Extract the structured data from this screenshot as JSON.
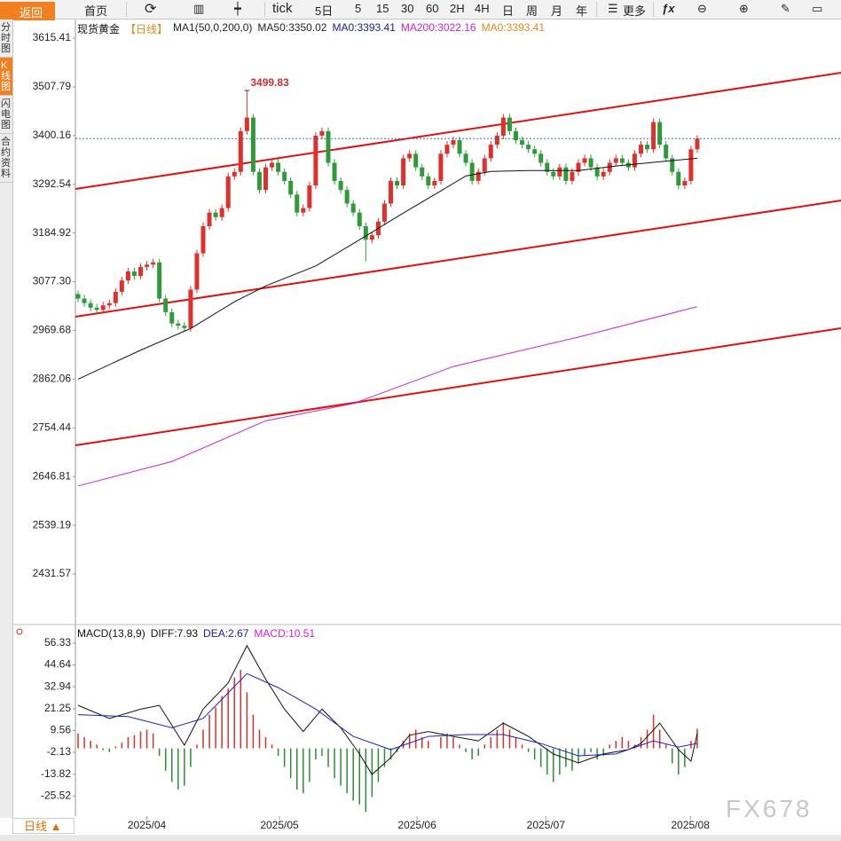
{
  "toolbar": {
    "back": "返回",
    "items": [
      "首页",
      "tick",
      "5日",
      "5",
      "15",
      "30",
      "60",
      "2H",
      "4H",
      "日",
      "周",
      "月",
      "年",
      "更多"
    ]
  },
  "sidebar": [
    "分时图",
    "K线图",
    "闪电图",
    "合约资料"
  ],
  "chart_data": [
    {
      "type": "candlestick",
      "title": "现货黄金",
      "period": "【日线】",
      "legend": [
        {
          "text": "MA1(50,0,200,0)",
          "color": "#222222"
        },
        {
          "text": "MA50:3350.02",
          "color": "#222222"
        },
        {
          "text": "MA0:3393.41",
          "color": "#1a1aa0"
        },
        {
          "text": "MA200:3022.16",
          "color": "#d020d0"
        },
        {
          "text": "MA0:3393.41",
          "color": "#e08a1e"
        }
      ],
      "up_color": "#e0302c",
      "down_color": "#2e9b3a",
      "open": [
        3050,
        3040,
        3030,
        3020,
        3015,
        3025,
        3030,
        3055,
        3080,
        3100,
        3090,
        3110,
        3115,
        3120,
        3040,
        3010,
        2985,
        2980,
        2975,
        3060,
        3140,
        3200,
        3230,
        3220,
        3240,
        3310,
        3320,
        3410,
        3440,
        3320,
        3280,
        3330,
        3340,
        3320,
        3300,
        3270,
        3230,
        3240,
        3290,
        3400,
        3410,
        3340,
        3300,
        3280,
        3250,
        3230,
        3200,
        3170,
        3180,
        3210,
        3250,
        3300,
        3290,
        3350,
        3360,
        3330,
        3310,
        3290,
        3300,
        3360,
        3380,
        3390,
        3360,
        3340,
        3300,
        3320,
        3350,
        3380,
        3400,
        3440,
        3410,
        3390,
        3380,
        3370,
        3360,
        3340,
        3320,
        3310,
        3330,
        3300,
        3320,
        3340,
        3350,
        3330,
        3310,
        3320,
        3340,
        3350,
        3340,
        3330,
        3360,
        3380,
        3370,
        3430,
        3380,
        3350,
        3320,
        3290,
        3300,
        3370
      ],
      "high": [
        3058,
        3048,
        3038,
        3028,
        3033,
        3038,
        3063,
        3088,
        3108,
        3108,
        3118,
        3123,
        3128,
        3128,
        3048,
        3018,
        2993,
        2988,
        3068,
        3148,
        3208,
        3238,
        3238,
        3248,
        3318,
        3328,
        3418,
        3499.83,
        3448,
        3328,
        3338,
        3348,
        3348,
        3328,
        3308,
        3278,
        3248,
        3298,
        3408,
        3418,
        3418,
        3348,
        3308,
        3288,
        3258,
        3238,
        3208,
        3188,
        3218,
        3258,
        3308,
        3308,
        3358,
        3368,
        3368,
        3338,
        3318,
        3308,
        3368,
        3388,
        3398,
        3398,
        3368,
        3348,
        3328,
        3358,
        3388,
        3408,
        3448,
        3448,
        3418,
        3398,
        3388,
        3378,
        3368,
        3348,
        3328,
        3338,
        3338,
        3328,
        3348,
        3358,
        3358,
        3338,
        3328,
        3348,
        3358,
        3358,
        3348,
        3368,
        3388,
        3388,
        3438,
        3438,
        3388,
        3358,
        3328,
        3308,
        3378,
        3401
      ],
      "low": [
        3032,
        3022,
        3012,
        3007,
        3007,
        3017,
        3022,
        3047,
        3072,
        3082,
        3082,
        3102,
        3107,
        3032,
        3002,
        2977,
        2972,
        2967,
        2967,
        3052,
        3132,
        3192,
        3212,
        3212,
        3232,
        3302,
        3312,
        3402,
        3312,
        3272,
        3272,
        3322,
        3312,
        3292,
        3262,
        3222,
        3222,
        3232,
        3282,
        3392,
        3332,
        3292,
        3272,
        3242,
        3222,
        3192,
        3122,
        3162,
        3172,
        3202,
        3242,
        3282,
        3282,
        3342,
        3322,
        3302,
        3282,
        3282,
        3292,
        3352,
        3372,
        3352,
        3332,
        3292,
        3292,
        3312,
        3342,
        3372,
        3392,
        3402,
        3382,
        3372,
        3362,
        3352,
        3332,
        3312,
        3302,
        3302,
        3292,
        3292,
        3312,
        3332,
        3322,
        3302,
        3302,
        3312,
        3332,
        3332,
        3322,
        3322,
        3352,
        3362,
        3362,
        3372,
        3342,
        3312,
        3282,
        3282,
        3292,
        3362
      ],
      "close": [
        3040,
        3030,
        3020,
        3015,
        3025,
        3030,
        3055,
        3080,
        3100,
        3090,
        3110,
        3115,
        3120,
        3040,
        3010,
        2985,
        2980,
        2975,
        3060,
        3140,
        3200,
        3230,
        3220,
        3240,
        3310,
        3320,
        3410,
        3440,
        3320,
        3280,
        3330,
        3340,
        3320,
        3300,
        3270,
        3230,
        3240,
        3290,
        3400,
        3410,
        3340,
        3300,
        3280,
        3250,
        3230,
        3200,
        3170,
        3180,
        3210,
        3250,
        3300,
        3290,
        3350,
        3360,
        3330,
        3310,
        3290,
        3300,
        3360,
        3380,
        3390,
        3360,
        3340,
        3300,
        3320,
        3350,
        3380,
        3400,
        3440,
        3410,
        3390,
        3380,
        3370,
        3360,
        3340,
        3320,
        3310,
        3330,
        3300,
        3320,
        3340,
        3350,
        3330,
        3310,
        3320,
        3340,
        3350,
        3340,
        3330,
        3360,
        3380,
        3370,
        3430,
        3380,
        3350,
        3320,
        3290,
        3300,
        3370,
        3393.41
      ],
      "lines": [
        {
          "color": "#111111",
          "x": [
            0,
            10,
            18,
            25,
            30,
            38,
            45,
            52,
            58,
            62,
            66,
            72,
            80,
            86,
            92,
            99
          ],
          "values": [
            2862,
            2926,
            2974,
            3033,
            3068,
            3112,
            3170,
            3229,
            3278,
            3311,
            3321,
            3323,
            3323,
            3333,
            3341,
            3350.02
          ]
        },
        {
          "color": "#d020d0",
          "x": [
            0,
            15,
            30,
            44,
            60,
            80,
            99
          ],
          "values": [
            2626,
            2680,
            2770,
            2808,
            2890,
            2955,
            3022.16
          ]
        }
      ],
      "ylim": [
        2327.7,
        3656.6
      ],
      "yticks": [
        3615.41,
        3507.79,
        3400.16,
        3292.54,
        3184.92,
        {
          "value": 3077.3,
          "label": "3077.30"
        },
        2969.68,
        2862.06,
        2754.44,
        2646.81,
        2539.19,
        2431.57
      ],
      "xticks": [
        {
          "value": 11,
          "label": "2025/04"
        },
        {
          "value": 32.2,
          "label": "2025/05"
        },
        {
          "value": 54.2,
          "label": "2025/06"
        },
        {
          "value": 74.8,
          "label": "2025/07"
        },
        {
          "value": 97.9,
          "label": "2025/08"
        }
      ]
    },
    {
      "type": "macd",
      "title": "MACD(13,8,9)",
      "legend": [
        {
          "text": "DIFF:7.93",
          "color": "#111111"
        },
        {
          "text": "DEA:2.67",
          "color": "#1a1aa0"
        },
        {
          "text": "MACD:10.51",
          "color": "#d020d0"
        }
      ],
      "series": [
        {
          "color": "#111111",
          "x": [
            0,
            5,
            10,
            13,
            17,
            20,
            24,
            27,
            30,
            33,
            36,
            39,
            42,
            45,
            47,
            50,
            53,
            56,
            60,
            64,
            68,
            72,
            76,
            80,
            84,
            88,
            90,
            93,
            96,
            98,
            99
          ],
          "values": [
            23,
            16,
            21,
            23,
            1.7,
            21,
            35,
            55,
            37,
            21,
            9,
            21,
            11,
            -3,
            -14,
            -5,
            7,
            9,
            6.4,
            4,
            13.5,
            6.4,
            -3,
            -7.8,
            -3,
            -0.7,
            2.6,
            13.5,
            -0.7,
            -6.9,
            7.93
          ]
        },
        {
          "color": "#2020c0",
          "x": [
            0,
            8,
            15,
            20,
            27,
            32,
            38,
            44,
            50,
            56,
            62,
            68,
            74,
            80,
            86,
            92,
            96,
            99
          ],
          "values": [
            18,
            17,
            11,
            16,
            40,
            32.5,
            21,
            6.4,
            -0.7,
            6.4,
            7.4,
            7.4,
            2.6,
            -4,
            -3,
            4,
            0.7,
            2.67
          ]
        }
      ],
      "histogram": {
        "up_color": "#d8302c",
        "down_color": "#2e8b3a",
        "values": [
          8,
          6,
          4,
          2,
          -1,
          -2,
          1,
          3,
          6,
          7,
          9,
          10,
          8,
          -4,
          -12,
          -18,
          -22,
          -20,
          -10,
          2,
          10,
          18,
          22,
          28,
          32,
          38,
          42,
          30,
          18,
          10,
          6,
          2,
          -4,
          -10,
          -16,
          -22,
          -24,
          -18,
          -6,
          -4,
          -10,
          -16,
          -20,
          -24,
          -28,
          -30,
          -34,
          -26,
          -18,
          -10,
          -6,
          -2,
          4,
          8,
          10,
          6,
          4,
          0,
          6,
          8,
          6,
          2,
          -2,
          -6,
          -4,
          2,
          6,
          10,
          14,
          10,
          6,
          2,
          -2,
          -6,
          -10,
          -14,
          -18,
          -14,
          -10,
          -12,
          -8,
          -4,
          -2,
          -6,
          -4,
          2,
          4,
          6,
          4,
          2,
          6,
          10,
          18,
          10,
          2,
          -8,
          -14,
          -10,
          4,
          10.51
        ]
      },
      "ylim": [
        -36.3,
        61.05
      ],
      "yticks": [
        56.33,
        44.64,
        32.94,
        21.25,
        9.56,
        -2.13,
        -13.82,
        -25.52
      ]
    }
  ],
  "footer": {
    "period": "日线 ▲",
    "watermark": "FX678"
  }
}
